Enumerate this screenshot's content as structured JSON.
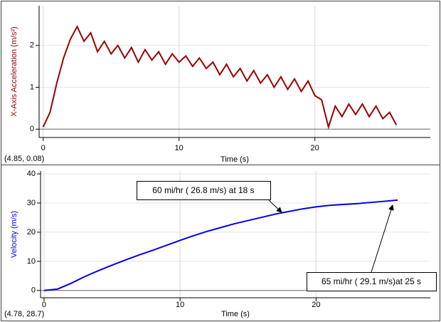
{
  "chart_data": [
    {
      "type": "line",
      "x_label": "Time (s)",
      "y_label": "X-Axis Acceleration (m/s²)",
      "readout": "(4.85, 0.08)",
      "xlim": [
        -0.3,
        28.5
      ],
      "xticks": [
        0,
        10,
        20
      ],
      "ylim": [
        -0.2,
        2.95
      ],
      "yticks": [
        0,
        1,
        2
      ],
      "grid": true,
      "series": [
        {
          "name": "X-Axis Acceleration",
          "color": "#990000",
          "x": [
            0,
            0.5,
            1,
            1.5,
            2,
            2.5,
            3,
            3.5,
            4,
            4.5,
            5,
            5.5,
            6,
            6.5,
            7,
            7.5,
            8,
            8.5,
            9,
            9.5,
            10,
            10.5,
            11,
            11.5,
            12,
            12.5,
            13,
            13.5,
            14,
            14.5,
            15,
            15.5,
            16,
            16.5,
            17,
            17.5,
            18,
            18.5,
            19,
            19.5,
            20,
            20.5,
            21,
            21.5,
            22,
            22.5,
            23,
            23.5,
            24,
            24.5,
            25,
            25.5,
            26
          ],
          "values": [
            0.05,
            0.4,
            1.1,
            1.7,
            2.15,
            2.45,
            2.1,
            2.3,
            1.85,
            2.1,
            1.8,
            2.0,
            1.7,
            1.95,
            1.6,
            1.9,
            1.65,
            1.85,
            1.55,
            1.8,
            1.6,
            1.75,
            1.5,
            1.7,
            1.45,
            1.6,
            1.3,
            1.55,
            1.25,
            1.45,
            1.15,
            1.4,
            1.1,
            1.3,
            1.0,
            1.25,
            0.95,
            1.2,
            0.9,
            1.15,
            0.8,
            0.7,
            0.05,
            0.55,
            0.3,
            0.6,
            0.35,
            0.6,
            0.3,
            0.55,
            0.25,
            0.4,
            0.1
          ]
        }
      ]
    },
    {
      "type": "line",
      "x_label": "Time (s)",
      "y_label": "Velocity (m/s)",
      "readout": "(4.78, 28.7)",
      "xlim": [
        -0.26,
        28.4
      ],
      "xticks": [
        0,
        10,
        20
      ],
      "ylim": [
        -2.5,
        41
      ],
      "yticks": [
        0,
        10,
        20,
        30,
        40
      ],
      "grid": true,
      "annotations": [
        "60 mi/hr ( 26.8 m/s) at 18 s",
        "65 mi/hr ( 29.1 m/s)at 25 s"
      ],
      "series": [
        {
          "name": "Velocity",
          "color": "#0000ee",
          "x": [
            0,
            1,
            2,
            3,
            4,
            5,
            6,
            7,
            8,
            9,
            10,
            11,
            12,
            13,
            14,
            15,
            16,
            17,
            18,
            19,
            20,
            21,
            22,
            23,
            24,
            25,
            26
          ],
          "values": [
            0,
            0.5,
            2.5,
            4.8,
            6.8,
            8.7,
            10.5,
            12.2,
            13.8,
            15.5,
            17.2,
            18.8,
            20.3,
            21.6,
            22.9,
            24.0,
            25.1,
            26.2,
            27.1,
            28.0,
            28.7,
            29.2,
            29.5,
            29.8,
            30.2,
            30.6,
            31.0
          ]
        }
      ]
    }
  ]
}
